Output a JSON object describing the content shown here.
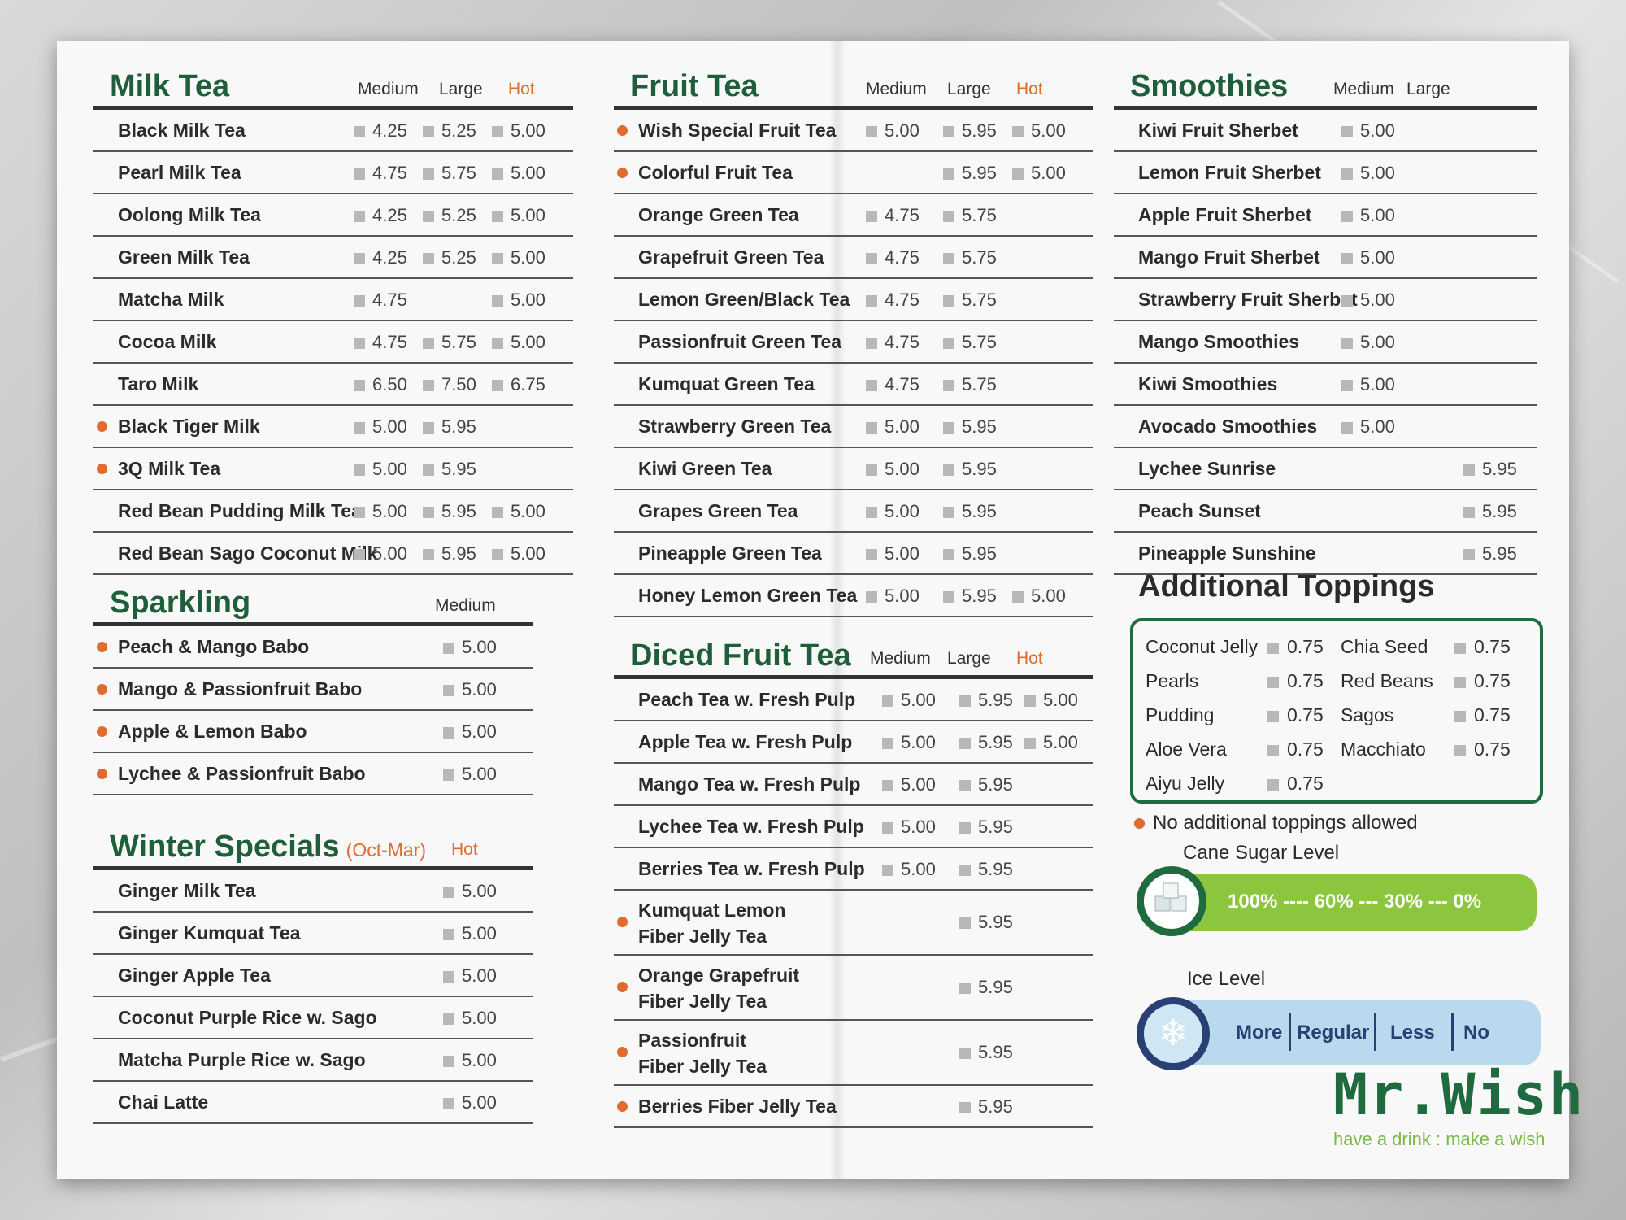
{
  "menu": {
    "milk_tea": {
      "title": "Milk Tea",
      "headers": [
        "Medium",
        "Large",
        "Hot"
      ],
      "items": [
        {
          "name": "Black Milk Tea",
          "medium": "4.25",
          "large": "5.25",
          "hot": "5.00",
          "dot": false
        },
        {
          "name": "Pearl Milk Tea",
          "medium": "4.75",
          "large": "5.75",
          "hot": "5.00",
          "dot": false
        },
        {
          "name": "Oolong Milk Tea",
          "medium": "4.25",
          "large": "5.25",
          "hot": "5.00",
          "dot": false
        },
        {
          "name": "Green Milk Tea",
          "medium": "4.25",
          "large": "5.25",
          "hot": "5.00",
          "dot": false
        },
        {
          "name": "Matcha Milk",
          "medium": "4.75",
          "large": "",
          "hot": "5.00",
          "dot": false
        },
        {
          "name": "Cocoa Milk",
          "medium": "4.75",
          "large": "5.75",
          "hot": "5.00",
          "dot": false
        },
        {
          "name": "Taro Milk",
          "medium": "6.50",
          "large": "7.50",
          "hot": "6.75",
          "dot": false
        },
        {
          "name": "Black Tiger Milk",
          "medium": "5.00",
          "large": "5.95",
          "hot": "",
          "dot": true
        },
        {
          "name": "3Q Milk Tea",
          "medium": "5.00",
          "large": "5.95",
          "hot": "",
          "dot": true
        },
        {
          "name": "Red Bean Pudding Milk Tea",
          "medium": "5.00",
          "large": "5.95",
          "hot": "5.00",
          "dot": false
        },
        {
          "name": "Red Bean Sago Coconut Milk",
          "medium": "5.00",
          "large": "5.95",
          "hot": "5.00",
          "dot": false
        }
      ]
    },
    "sparkling": {
      "title": "Sparkling",
      "headers": [
        "Medium"
      ],
      "items": [
        {
          "name": "Peach & Mango Babo",
          "medium": "5.00",
          "dot": true
        },
        {
          "name": "Mango & Passionfruit Babo",
          "medium": "5.00",
          "dot": true
        },
        {
          "name": "Apple & Lemon Babo",
          "medium": "5.00",
          "dot": true
        },
        {
          "name": "Lychee & Passionfruit Babo",
          "medium": "5.00",
          "dot": true
        }
      ]
    },
    "winter_specials": {
      "title": "Winter Specials",
      "subtitle": "(Oct-Mar)",
      "headers": [
        "Hot"
      ],
      "items": [
        {
          "name": "Ginger Milk Tea",
          "hot": "5.00"
        },
        {
          "name": "Ginger Kumquat Tea",
          "hot": "5.00"
        },
        {
          "name": "Ginger Apple Tea",
          "hot": "5.00"
        },
        {
          "name": "Coconut Purple Rice w. Sago",
          "hot": "5.00"
        },
        {
          "name": "Matcha Purple Rice w. Sago",
          "hot": "5.00"
        },
        {
          "name": "Chai Latte",
          "hot": "5.00"
        }
      ]
    },
    "fruit_tea": {
      "title": "Fruit Tea",
      "headers": [
        "Medium",
        "Large",
        "Hot"
      ],
      "items": [
        {
          "name": "Wish Special Fruit Tea",
          "medium": "5.00",
          "large": "5.95",
          "hot": "5.00",
          "dot": true
        },
        {
          "name": "Colorful Fruit Tea",
          "medium": "",
          "large": "5.95",
          "hot": "5.00",
          "dot": true
        },
        {
          "name": "Orange Green Tea",
          "medium": "4.75",
          "large": "5.75",
          "hot": "",
          "dot": false
        },
        {
          "name": "Grapefruit Green Tea",
          "medium": "4.75",
          "large": "5.75",
          "hot": "",
          "dot": false
        },
        {
          "name": "Lemon Green/Black Tea",
          "medium": "4.75",
          "large": "5.75",
          "hot": "",
          "dot": false
        },
        {
          "name": "Passionfruit Green Tea",
          "medium": "4.75",
          "large": "5.75",
          "hot": "",
          "dot": false
        },
        {
          "name": "Kumquat Green Tea",
          "medium": "4.75",
          "large": "5.75",
          "hot": "",
          "dot": false
        },
        {
          "name": "Strawberry Green Tea",
          "medium": "5.00",
          "large": "5.95",
          "hot": "",
          "dot": false
        },
        {
          "name": "Kiwi Green Tea",
          "medium": "5.00",
          "large": "5.95",
          "hot": "",
          "dot": false
        },
        {
          "name": "Grapes Green Tea",
          "medium": "5.00",
          "large": "5.95",
          "hot": "",
          "dot": false
        },
        {
          "name": "Pineapple Green Tea",
          "medium": "5.00",
          "large": "5.95",
          "hot": "",
          "dot": false
        },
        {
          "name": "Honey Lemon Green Tea",
          "medium": "5.00",
          "large": "5.95",
          "hot": "5.00",
          "dot": false
        }
      ]
    },
    "diced_fruit_tea": {
      "title": "Diced Fruit Tea",
      "headers": [
        "Medium",
        "Large",
        "Hot"
      ],
      "items": [
        {
          "name": "Peach Tea w. Fresh Pulp",
          "medium": "5.00",
          "large": "5.95",
          "hot": "5.00",
          "dot": false
        },
        {
          "name": "Apple Tea w. Fresh Pulp",
          "medium": "5.00",
          "large": "5.95",
          "hot": "5.00",
          "dot": false
        },
        {
          "name": "Mango Tea w. Fresh Pulp",
          "medium": "5.00",
          "large": "5.95",
          "hot": "",
          "dot": false
        },
        {
          "name": "Lychee Tea w. Fresh Pulp",
          "medium": "5.00",
          "large": "5.95",
          "hot": "",
          "dot": false
        },
        {
          "name": "Berries Tea w. Fresh Pulp",
          "medium": "5.00",
          "large": "5.95",
          "hot": "",
          "dot": false
        },
        {
          "name": "Kumquat Lemon",
          "name2": "Fiber Jelly Tea",
          "medium": "",
          "large": "5.95",
          "hot": "",
          "dot": true
        },
        {
          "name": "Orange Grapefruit",
          "name2": "Fiber Jelly Tea",
          "medium": "",
          "large": "5.95",
          "hot": "",
          "dot": true
        },
        {
          "name": "Passionfruit",
          "name2": "Fiber Jelly Tea",
          "medium": "",
          "large": "5.95",
          "hot": "",
          "dot": true
        },
        {
          "name": "Berries Fiber Jelly Tea",
          "medium": "",
          "large": "5.95",
          "hot": "",
          "dot": true
        }
      ]
    },
    "smoothies": {
      "title": "Smoothies",
      "headers": [
        "Medium",
        "Large"
      ],
      "items": [
        {
          "name": "Kiwi Fruit Sherbet",
          "medium": "5.00",
          "large": ""
        },
        {
          "name": "Lemon Fruit Sherbet",
          "medium": "5.00",
          "large": ""
        },
        {
          "name": "Apple Fruit Sherbet",
          "medium": "5.00",
          "large": ""
        },
        {
          "name": "Mango Fruit Sherbet",
          "medium": "5.00",
          "large": ""
        },
        {
          "name": "Strawberry Fruit Sherbet",
          "medium": "5.00",
          "large": ""
        },
        {
          "name": "Mango Smoothies",
          "medium": "5.00",
          "large": ""
        },
        {
          "name": "Kiwi Smoothies",
          "medium": "5.00",
          "large": ""
        },
        {
          "name": "Avocado Smoothies",
          "medium": "5.00",
          "large": ""
        },
        {
          "name": "Lychee Sunrise",
          "medium": "",
          "large": "5.95"
        },
        {
          "name": "Peach Sunset",
          "medium": "",
          "large": "5.95"
        },
        {
          "name": "Pineapple Sunshine",
          "medium": "",
          "large": "5.95"
        }
      ]
    },
    "toppings": {
      "title": "Additional Toppings",
      "items": [
        {
          "name": "Coconut Jelly",
          "price": "0.75"
        },
        {
          "name": "Pearls",
          "price": "0.75"
        },
        {
          "name": "Pudding",
          "price": "0.75"
        },
        {
          "name": "Aloe Vera",
          "price": "0.75"
        },
        {
          "name": "Aiyu Jelly",
          "price": "0.75"
        },
        {
          "name": "Chia Seed",
          "price": "0.75"
        },
        {
          "name": "Red Beans",
          "price": "0.75"
        },
        {
          "name": "Sagos",
          "price": "0.75"
        },
        {
          "name": "Macchiato",
          "price": "0.75"
        }
      ],
      "note": "No additional toppings allowed"
    },
    "sugar": {
      "title": "Cane Sugar Level",
      "levels": "100% ---- 60% --- 30% --- 0%"
    },
    "ice": {
      "title": "Ice Level",
      "options": [
        "More",
        "Regular",
        "Less",
        "No"
      ]
    },
    "brand": {
      "name": "Mr.Wish",
      "tagline": "have a drink : make a wish"
    },
    "colors": {
      "brand_green": "#1f6b3f",
      "dot_orange": "#e06b2e",
      "sugar_bar": "#8cc63f",
      "ice_bar": "#b9d9ee"
    }
  }
}
